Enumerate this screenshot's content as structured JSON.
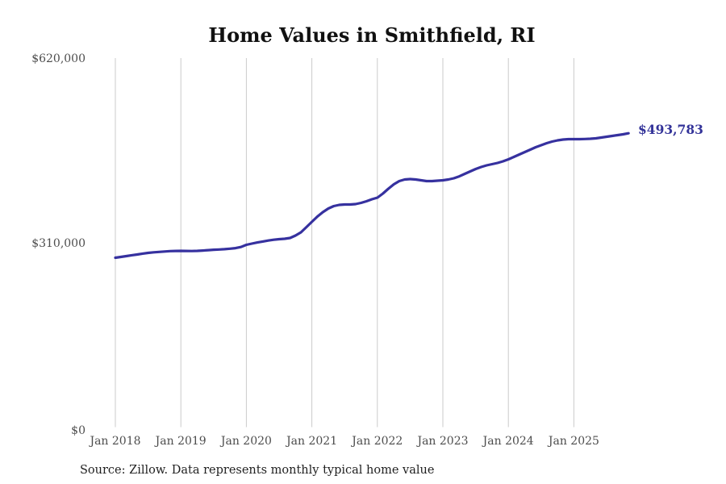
{
  "title": "Home Values in Smithfield, RI",
  "source_note": "Source: Zillow. Data represents monthly typical home value",
  "colors": {
    "line": "#36319f",
    "end_label": "#333399",
    "grid": "#cbcbcb",
    "axis_text": "#4d4d4d",
    "title_text": "#111111",
    "source_text": "#1f1f1f",
    "background": "#ffffff"
  },
  "chart_data": {
    "type": "line",
    "title": "Home Values in Smithfield, RI",
    "xlabel": "",
    "ylabel": "",
    "ylim": [
      0,
      620000
    ],
    "grid": "vertical-only",
    "legend": "none",
    "y_tick_values": [
      0,
      310000,
      620000
    ],
    "y_tick_labels": [
      "$0",
      "$310,000",
      "$620,000"
    ],
    "x_tick_labels": [
      "Jan 2018",
      "Jan 2019",
      "Jan 2020",
      "Jan 2021",
      "Jan 2022",
      "Jan 2023",
      "Jan 2024",
      "Jan 2025"
    ],
    "end_label": "$493,783",
    "end_value": 493783,
    "x": [
      "2018-01",
      "2018-02",
      "2018-03",
      "2018-04",
      "2018-05",
      "2018-06",
      "2018-07",
      "2018-08",
      "2018-09",
      "2018-10",
      "2018-11",
      "2018-12",
      "2019-01",
      "2019-02",
      "2019-03",
      "2019-04",
      "2019-05",
      "2019-06",
      "2019-07",
      "2019-08",
      "2019-09",
      "2019-10",
      "2019-11",
      "2019-12",
      "2020-01",
      "2020-02",
      "2020-03",
      "2020-04",
      "2020-05",
      "2020-06",
      "2020-07",
      "2020-08",
      "2020-09",
      "2020-10",
      "2020-11",
      "2020-12",
      "2021-01",
      "2021-02",
      "2021-03",
      "2021-04",
      "2021-05",
      "2021-06",
      "2021-07",
      "2021-08",
      "2021-09",
      "2021-10",
      "2021-11",
      "2021-12",
      "2022-01",
      "2022-02",
      "2022-03",
      "2022-04",
      "2022-05",
      "2022-06",
      "2022-07",
      "2022-08",
      "2022-09",
      "2022-10",
      "2022-11",
      "2022-12",
      "2023-01",
      "2023-02",
      "2023-03",
      "2023-04",
      "2023-05",
      "2023-06",
      "2023-07",
      "2023-08",
      "2023-09",
      "2023-10",
      "2023-11",
      "2023-12",
      "2024-01",
      "2024-02",
      "2024-03",
      "2024-04",
      "2024-05",
      "2024-06",
      "2024-07",
      "2024-08",
      "2024-09",
      "2024-10",
      "2024-11",
      "2024-12",
      "2025-01",
      "2025-02",
      "2025-03",
      "2025-04",
      "2025-05",
      "2025-06",
      "2025-07",
      "2025-08",
      "2025-09",
      "2025-10",
      "2025-11"
    ],
    "series": [
      {
        "name": "Monthly typical home value",
        "values": [
          285000,
          286300,
          287700,
          289100,
          290400,
          291800,
          293100,
          294000,
          294700,
          295400,
          296000,
          296300,
          296500,
          296300,
          296200,
          296500,
          297000,
          297700,
          298400,
          298700,
          299300,
          300100,
          301000,
          303000,
          306600,
          308700,
          310600,
          312200,
          313800,
          315200,
          316100,
          316800,
          318100,
          322200,
          327600,
          336400,
          345200,
          354000,
          361500,
          367500,
          371600,
          373600,
          374300,
          374300,
          375000,
          377000,
          379700,
          383100,
          385800,
          392600,
          400700,
          408100,
          413500,
          416200,
          416900,
          416200,
          414900,
          413500,
          413500,
          414200,
          414900,
          416200,
          418300,
          421600,
          425700,
          429800,
          433800,
          437200,
          440000,
          442000,
          444000,
          446700,
          450100,
          454200,
          458200,
          462300,
          466400,
          470400,
          473800,
          477200,
          479900,
          481900,
          483300,
          484000,
          484000,
          484000,
          484200,
          484600,
          485300,
          486600,
          488000,
          489400,
          490700,
          492100,
          493783
        ]
      }
    ]
  }
}
